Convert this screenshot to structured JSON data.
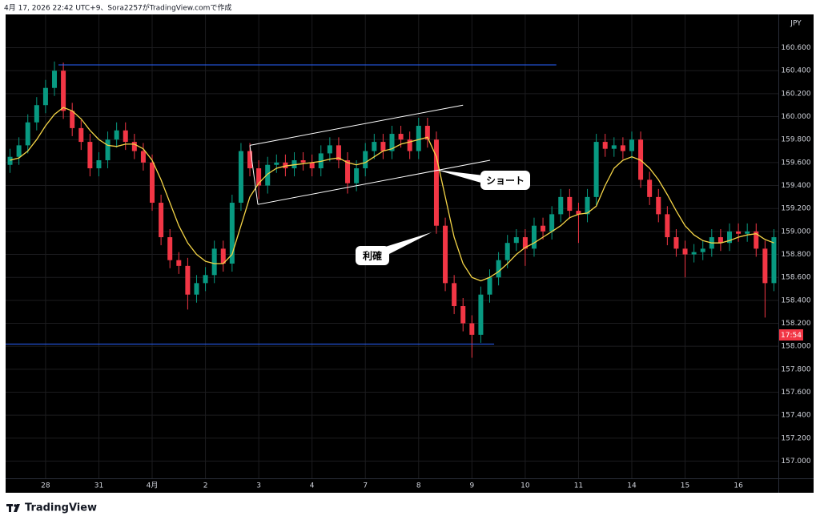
{
  "header": "4月 17, 2026 22:42 UTC+9、Sora2257がTradingView.comで作成",
  "footer": {
    "brand": "TradingView"
  },
  "chart_data": {
    "type": "candlestick",
    "currency": "JPY",
    "countdown": "17:54",
    "colors": {
      "up": "#089981",
      "down": "#f23645"
    },
    "xlim": [
      0,
      87
    ],
    "ylim": [
      156.85,
      160.89
    ],
    "xticks": [
      {
        "value": 4.5,
        "label": "28"
      },
      {
        "value": 10.5,
        "label": "31"
      },
      {
        "value": 16.5,
        "label": "4月"
      },
      {
        "value": 22.5,
        "label": "2"
      },
      {
        "value": 28.5,
        "label": "3"
      },
      {
        "value": 34.5,
        "label": "4"
      },
      {
        "value": 40.5,
        "label": "7"
      },
      {
        "value": 46.5,
        "label": "8"
      },
      {
        "value": 52.5,
        "label": "9"
      },
      {
        "value": 58.5,
        "label": "10"
      },
      {
        "value": 64.5,
        "label": "11"
      },
      {
        "value": 70.5,
        "label": "14"
      },
      {
        "value": 76.5,
        "label": "15"
      },
      {
        "value": 82.5,
        "label": "16"
      }
    ],
    "yticks": [
      {
        "value": 160.6,
        "label": "160.600"
      },
      {
        "value": 160.4,
        "label": "160.400"
      },
      {
        "value": 160.2,
        "label": "160.200"
      },
      {
        "value": 160.0,
        "label": "160.000"
      },
      {
        "value": 159.8,
        "label": "159.800"
      },
      {
        "value": 159.6,
        "label": "159.600"
      },
      {
        "value": 159.4,
        "label": "159.400"
      },
      {
        "value": 159.2,
        "label": "159.200"
      },
      {
        "value": 159.0,
        "label": "159.000"
      },
      {
        "value": 158.8,
        "label": "158.800"
      },
      {
        "value": 158.6,
        "label": "158.600"
      },
      {
        "value": 158.4,
        "label": "158.400"
      },
      {
        "value": 158.2,
        "label": "158.200"
      },
      {
        "value": 158.0,
        "label": "158.000"
      },
      {
        "value": 157.8,
        "label": "157.800"
      },
      {
        "value": 157.6,
        "label": "157.600"
      },
      {
        "value": 157.4,
        "label": "157.400"
      },
      {
        "value": 157.2,
        "label": "157.200"
      },
      {
        "value": 157.0,
        "label": "157.000"
      }
    ],
    "grid": true,
    "open": [
      159.58,
      159.65,
      159.75,
      159.95,
      160.1,
      160.25,
      160.4,
      160.05,
      159.9,
      159.78,
      159.55,
      159.62,
      159.8,
      159.88,
      159.78,
      159.7,
      159.6,
      159.25,
      158.95,
      158.75,
      158.7,
      158.45,
      158.55,
      158.62,
      158.85,
      158.72,
      159.25,
      159.7,
      159.55,
      159.4,
      159.58,
      159.6,
      159.55,
      159.62,
      159.6,
      159.55,
      159.68,
      159.75,
      159.62,
      159.42,
      159.55,
      159.7,
      159.78,
      159.7,
      159.85,
      159.8,
      159.7,
      159.92,
      159.8,
      159.05,
      158.55,
      158.35,
      158.2,
      158.1,
      158.45,
      158.6,
      158.75,
      158.9,
      158.95,
      158.85,
      159.05,
      159.0,
      159.15,
      159.3,
      159.18,
      159.15,
      159.3,
      159.78,
      159.72,
      159.75,
      159.7,
      159.8,
      159.45,
      159.3,
      159.15,
      158.95,
      158.85,
      158.8,
      158.82,
      158.85,
      158.95,
      158.9,
      159.0,
      158.98,
      159.0,
      158.85,
      158.55
    ],
    "high": [
      159.72,
      159.82,
      160.02,
      160.17,
      160.32,
      160.48,
      160.47,
      160.12,
      159.97,
      159.85,
      159.69,
      159.87,
      159.95,
      159.95,
      159.85,
      159.77,
      159.67,
      159.32,
      159.02,
      158.82,
      158.77,
      158.62,
      158.69,
      158.92,
      158.92,
      159.32,
      159.77,
      159.77,
      159.62,
      159.65,
      159.67,
      159.67,
      159.69,
      159.69,
      159.67,
      159.75,
      159.82,
      159.82,
      159.69,
      159.62,
      159.77,
      159.85,
      159.85,
      159.92,
      159.92,
      159.87,
      159.99,
      159.99,
      159.87,
      159.12,
      158.62,
      158.42,
      158.27,
      158.52,
      158.67,
      158.82,
      158.97,
      159.02,
      159.02,
      159.12,
      159.12,
      159.22,
      159.37,
      159.37,
      159.25,
      159.37,
      159.85,
      159.85,
      159.82,
      159.82,
      159.87,
      159.87,
      159.52,
      159.37,
      159.22,
      159.02,
      158.92,
      158.89,
      158.92,
      159.02,
      159.02,
      159.07,
      159.07,
      159.07,
      159.07,
      158.92,
      159.02
    ],
    "low": [
      159.51,
      159.58,
      159.68,
      159.88,
      160.03,
      160.18,
      159.98,
      159.83,
      159.71,
      159.48,
      159.48,
      159.55,
      159.73,
      159.71,
      159.63,
      159.53,
      159.18,
      158.88,
      158.68,
      158.63,
      158.32,
      158.38,
      158.48,
      158.55,
      158.65,
      158.65,
      159.18,
      159.48,
      159.28,
      159.33,
      159.51,
      159.48,
      159.48,
      159.53,
      159.48,
      159.48,
      159.61,
      159.55,
      159.33,
      159.35,
      159.48,
      159.63,
      159.63,
      159.63,
      159.73,
      159.63,
      159.63,
      159.73,
      158.98,
      158.48,
      158.28,
      158.13,
      157.9,
      158.03,
      158.38,
      158.53,
      158.68,
      158.83,
      158.7,
      158.78,
      158.93,
      158.93,
      159.08,
      159.11,
      158.9,
      159.08,
      159.23,
      159.65,
      159.65,
      159.63,
      159.63,
      159.38,
      159.23,
      159.08,
      158.88,
      158.78,
      158.6,
      158.73,
      158.75,
      158.78,
      158.83,
      158.83,
      158.91,
      158.91,
      158.78,
      158.25,
      158.48
    ],
    "close": [
      159.65,
      159.75,
      159.95,
      160.1,
      160.25,
      160.4,
      160.05,
      159.9,
      159.78,
      159.55,
      159.62,
      159.8,
      159.88,
      159.78,
      159.7,
      159.6,
      159.25,
      158.95,
      158.75,
      158.7,
      158.45,
      158.55,
      158.62,
      158.85,
      158.72,
      159.25,
      159.7,
      159.55,
      159.4,
      159.58,
      159.6,
      159.55,
      159.62,
      159.6,
      159.55,
      159.68,
      159.75,
      159.62,
      159.42,
      159.55,
      159.7,
      159.78,
      159.7,
      159.85,
      159.8,
      159.7,
      159.92,
      159.8,
      159.05,
      158.55,
      158.35,
      158.2,
      158.1,
      158.45,
      158.6,
      158.75,
      158.9,
      158.95,
      158.85,
      159.05,
      159.0,
      159.15,
      159.3,
      159.18,
      159.15,
      159.3,
      159.78,
      159.72,
      159.75,
      159.7,
      159.8,
      159.45,
      159.3,
      159.15,
      158.95,
      158.85,
      158.8,
      158.82,
      158.85,
      158.95,
      158.9,
      159.0,
      158.98,
      159.0,
      158.85,
      158.55,
      158.95
    ],
    "overlay_line": {
      "color": "#f5d547",
      "values": [
        159.62,
        159.64,
        159.7,
        159.8,
        159.92,
        160.02,
        160.08,
        160.05,
        159.98,
        159.88,
        159.8,
        159.75,
        159.74,
        159.76,
        159.76,
        159.72,
        159.62,
        159.45,
        159.25,
        159.05,
        158.9,
        158.8,
        158.74,
        158.72,
        158.72,
        158.8,
        159.05,
        159.3,
        159.42,
        159.5,
        159.55,
        159.57,
        159.58,
        159.59,
        159.6,
        159.61,
        159.63,
        159.64,
        159.6,
        159.58,
        159.6,
        159.65,
        159.7,
        159.72,
        159.76,
        159.78,
        159.8,
        159.82,
        159.65,
        159.3,
        158.95,
        158.72,
        158.6,
        158.57,
        158.6,
        158.65,
        158.72,
        158.8,
        158.86,
        158.9,
        158.95,
        159.0,
        159.05,
        159.12,
        159.15,
        159.16,
        159.22,
        159.4,
        159.55,
        159.62,
        159.65,
        159.62,
        159.55,
        159.45,
        159.32,
        159.18,
        159.05,
        158.97,
        158.92,
        158.9,
        158.9,
        158.92,
        158.95,
        158.97,
        158.98,
        158.93,
        158.9
      ]
    },
    "levels": [
      {
        "value": 160.45,
        "from": 5.95,
        "to": 62,
        "color": "#2962ff"
      },
      {
        "value": 158.02,
        "from": 0,
        "to": 55,
        "color": "#2962ff"
      }
    ],
    "trendlines": [
      {
        "x": [
          27.5,
          51.5
        ],
        "y": [
          159.75,
          160.1
        ],
        "color": "#ffffff"
      },
      {
        "x": [
          28.4,
          54.55
        ],
        "y": [
          159.235,
          159.62
        ],
        "color": "#ffffff"
      },
      {
        "x": [
          27.5,
          28.4
        ],
        "y": [
          159.75,
          159.235
        ],
        "color": "#ffffff"
      }
    ],
    "annotations": [
      "ショート",
      "利確"
    ]
  }
}
